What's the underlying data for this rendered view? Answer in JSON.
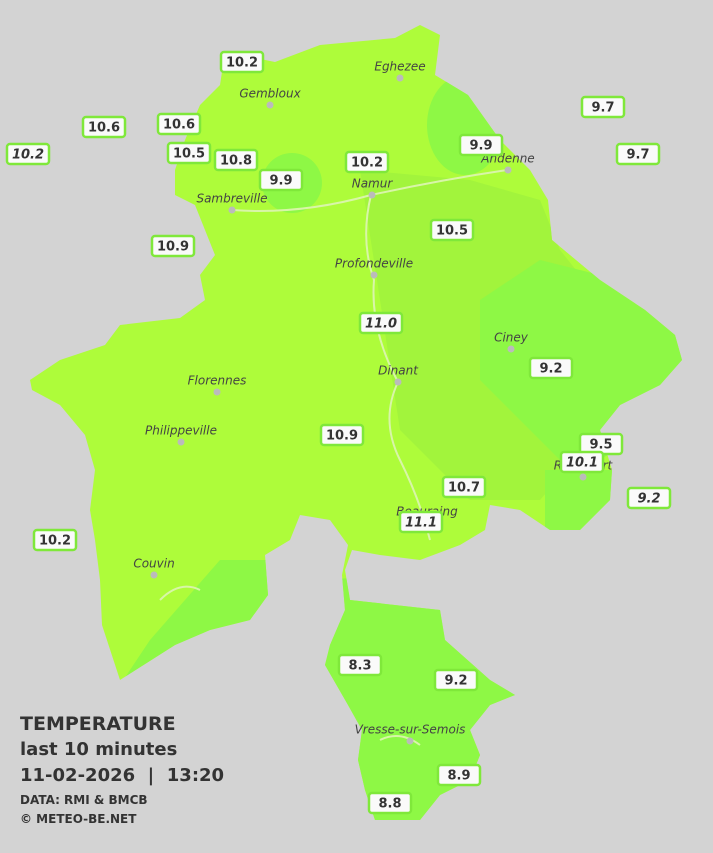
{
  "stations": [
    {
      "label": "10.2"
    },
    {
      "label": "10.6"
    },
    {
      "label": "10.2",
      "italic": true
    },
    {
      "label": "10.6"
    },
    {
      "label": "10.5"
    },
    {
      "label": "10.8"
    },
    {
      "label": "9.9"
    },
    {
      "label": "10.2"
    },
    {
      "label": "9.9"
    },
    {
      "label": "9.7"
    },
    {
      "label": "9.7"
    },
    {
      "label": "10.9"
    },
    {
      "label": "10.5"
    },
    {
      "label": "11.0",
      "italic": true
    },
    {
      "label": "9.2"
    },
    {
      "label": "10.9"
    },
    {
      "label": "9.5"
    },
    {
      "label": "10.1",
      "italic": true
    },
    {
      "label": "9.2",
      "italic": true
    },
    {
      "label": "10.7"
    },
    {
      "label": "11.1",
      "italic": true
    },
    {
      "label": "10.2"
    },
    {
      "label": "8.3"
    },
    {
      "label": "9.2"
    },
    {
      "label": "8.9"
    },
    {
      "label": "8.8"
    }
  ],
  "cities": [
    "Eghezee",
    "Gembloux",
    "Andenne",
    "Namur",
    "Sambreville",
    "Profondeville",
    "Ciney",
    "Dinant",
    "Florennes",
    "Philippeville",
    "Rochefort",
    "Beauraing",
    "Couvin",
    "Vresse-sur-Semois"
  ],
  "legend": {
    "title": "TEMPERATURE",
    "subtitle": "last 10 minutes",
    "datetime": "11-02-2026  |  13:20",
    "source": "DATA: RMI & BMCB",
    "copyright": "© METEO-BE.NET"
  }
}
